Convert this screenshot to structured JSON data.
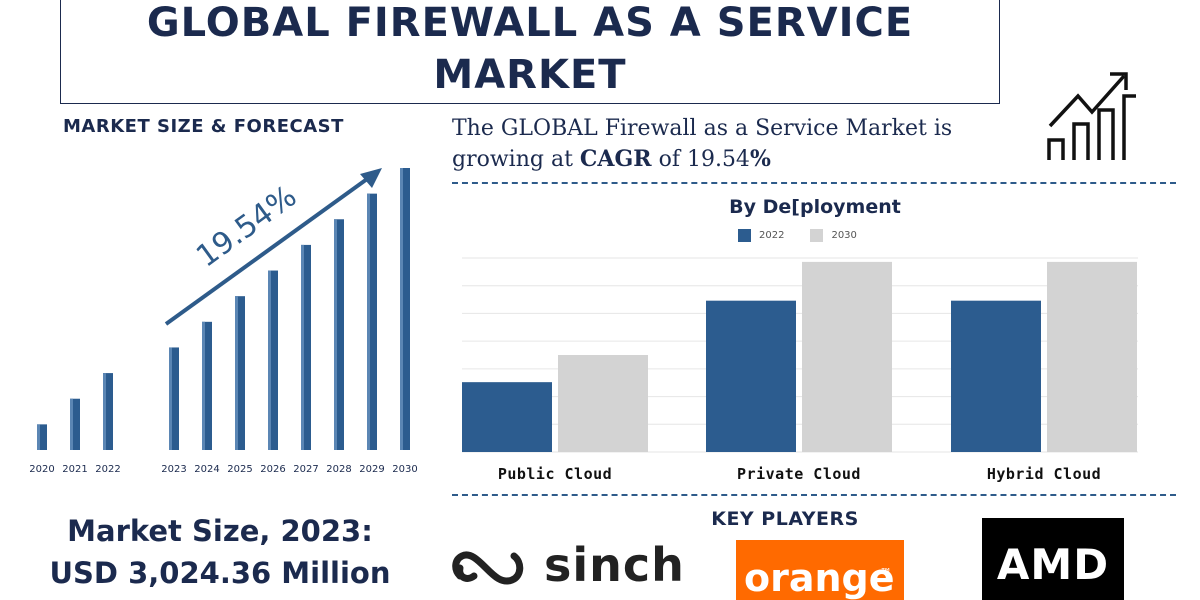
{
  "title": {
    "line1": "GLOBAL FIREWALL AS A SERVICE",
    "line2": "MARKET"
  },
  "left_heading": "MARKET SIZE & FORECAST",
  "cagr_sentence": {
    "part1": "The GLOBAL Firewall as a Service Market is",
    "part2": "growing at ",
    "cagr_word": "CAGR",
    "part3": " of 19.54",
    "percent": "%"
  },
  "market_size": {
    "line1": "Market Size, 2023:",
    "line2": "USD 3,024.36 Million"
  },
  "key_players_heading": "KEY PLAYERS",
  "key_players": {
    "sinch": "sinch",
    "orange": "orange",
    "orange_tm": "™",
    "amd": "AMD"
  },
  "colors": {
    "navy": "#1b2a4e",
    "bar_blue": "#2c5c8f",
    "bar_grey": "#d3d3d3",
    "orange": "#ff6a00"
  },
  "icon": "growth-chart-icon",
  "chart_data": [
    {
      "type": "bar",
      "categories": [
        "2020",
        "2021",
        "2022",
        "2023",
        "2024",
        "2025",
        "2026",
        "2027",
        "2028",
        "2029",
        "2030"
      ],
      "values": [
        1,
        2,
        3,
        4,
        5,
        6,
        7,
        8,
        9,
        10,
        11
      ],
      "annotation": "19.54%",
      "ylim": [
        0,
        11
      ],
      "grid": false
    },
    {
      "type": "bar",
      "title": "By De[ployment",
      "categories": [
        "Public Cloud",
        "Private Cloud",
        "Hybrid Cloud"
      ],
      "series": [
        {
          "name": "2022",
          "values": [
            36,
            78,
            78
          ],
          "color": "#2c5c8f"
        },
        {
          "name": "2030",
          "values": [
            50,
            98,
            98
          ],
          "color": "#d3d3d3"
        }
      ],
      "ylim": [
        0,
        100
      ],
      "grid": true,
      "legend": "top-center"
    }
  ]
}
